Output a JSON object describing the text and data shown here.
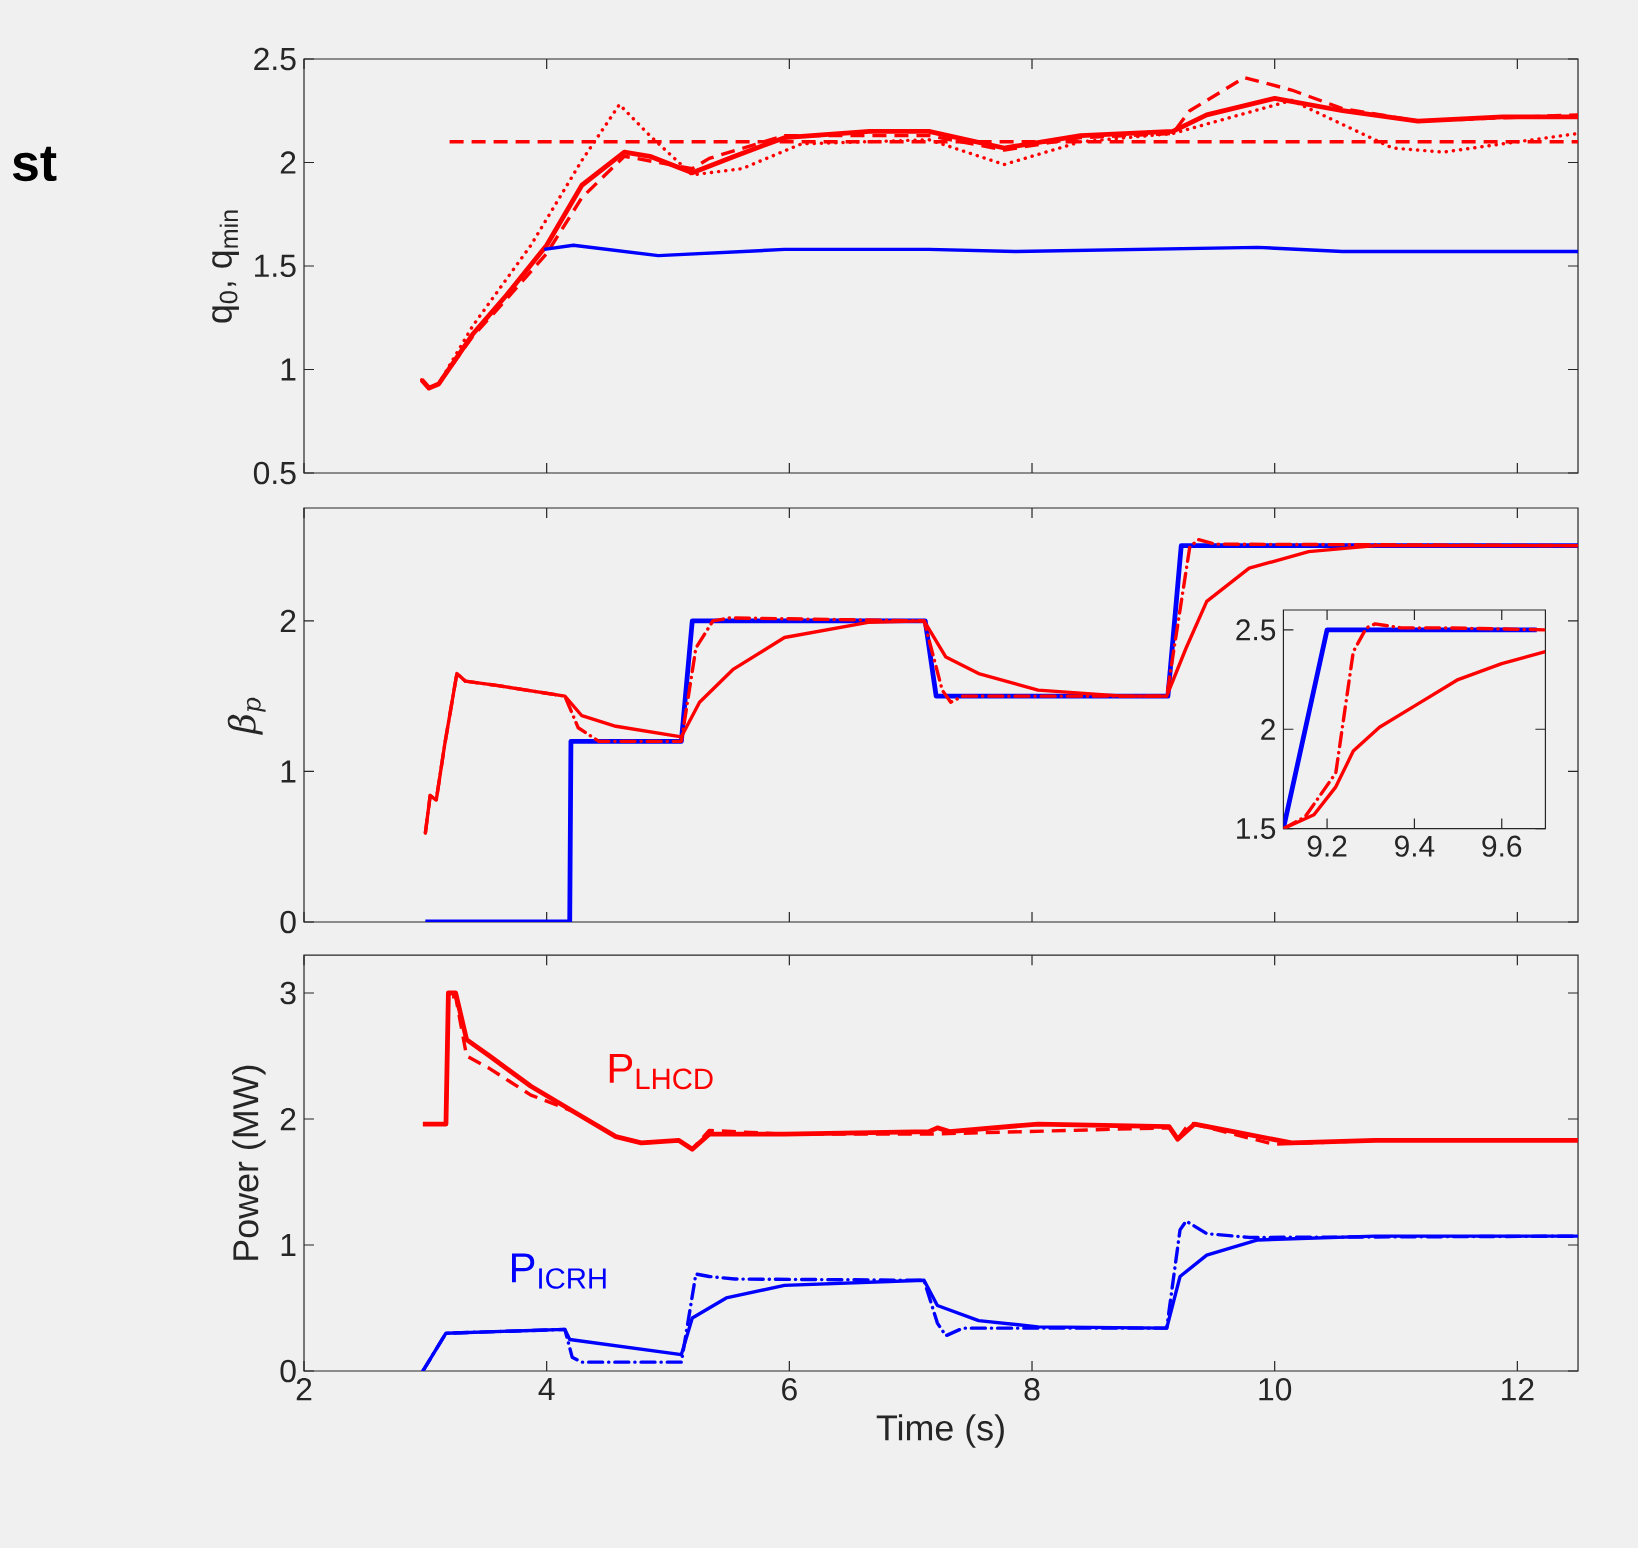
{
  "chart_data": [
    {
      "type": "line",
      "ylabel": "q$_{0}$, q$_{min}$",
      "annotations": [
        "st"
      ],
      "xlim": [
        2,
        12.5
      ],
      "ylim": [
        0.5,
        2.5
      ],
      "xticks": [
        2,
        4,
        6,
        8,
        10,
        12
      ],
      "yticks": [
        0.5,
        1,
        1.5,
        2,
        2.5
      ],
      "tick_labels": "y",
      "series": [
        {
          "color": "#ff0000",
          "line_style": "solid",
          "x": [
            2.97,
            3.03,
            3.11,
            3.39,
            3.67,
            4.0,
            4.29,
            4.64,
            4.85,
            5.2,
            5.55,
            5.96,
            6.66,
            7.15,
            7.77,
            8.4,
            9.16,
            9.44,
            10.0,
            10.56,
            11.18,
            11.88,
            12.5
          ],
          "values": [
            0.95,
            0.91,
            0.93,
            1.17,
            1.36,
            1.6,
            1.89,
            2.05,
            2.03,
            1.95,
            2.03,
            2.12,
            2.15,
            2.15,
            2.07,
            2.13,
            2.15,
            2.23,
            2.31,
            2.25,
            2.2,
            2.22,
            2.22
          ]
        },
        {
          "color": "#ff0000",
          "line_style": "dashed",
          "x": [
            2.97,
            3.03,
            3.11,
            3.39,
            3.67,
            4.0,
            4.29,
            4.64,
            5.2,
            5.34,
            5.96,
            7.15,
            7.77,
            8.4,
            9.16,
            9.3,
            9.75,
            10.14,
            10.56,
            11.18,
            12.5
          ],
          "values": [
            0.95,
            0.91,
            0.93,
            1.16,
            1.34,
            1.56,
            1.83,
            2.03,
            1.97,
            2.02,
            2.13,
            2.13,
            2.06,
            2.12,
            2.14,
            2.25,
            2.41,
            2.35,
            2.26,
            2.2,
            2.23
          ]
        },
        {
          "color": "#ff0000",
          "line_style": "dotted",
          "x": [
            2.97,
            3.03,
            3.11,
            3.39,
            3.87,
            4.29,
            4.6,
            4.85,
            5.2,
            5.61,
            6.1,
            7.15,
            7.77,
            8.4,
            9.16,
            10.14,
            10.97,
            11.39,
            11.88,
            12.5
          ],
          "values": [
            0.95,
            0.91,
            0.93,
            1.21,
            1.6,
            2.01,
            2.28,
            2.13,
            1.94,
            1.97,
            2.09,
            2.11,
            1.99,
            2.1,
            2.14,
            2.3,
            2.07,
            2.05,
            2.09,
            2.14
          ]
        },
        {
          "color": "#ff0000",
          "line_style": "dashed",
          "x": [
            3.2,
            12.5
          ],
          "values": [
            2.1,
            2.1
          ]
        },
        {
          "color": "#0000ff",
          "line_style": "solid",
          "x": [
            3.98,
            4.22,
            4.92,
            5.96,
            7.15,
            7.86,
            9.86,
            10.56,
            12.5
          ],
          "values": [
            1.58,
            1.6,
            1.55,
            1.58,
            1.58,
            1.57,
            1.59,
            1.57,
            1.57
          ]
        }
      ]
    },
    {
      "type": "line",
      "ylabel": "β$_{p}$",
      "xlim": [
        2,
        12.5
      ],
      "ylim": [
        0,
        2.75
      ],
      "xticks": [
        2,
        4,
        6,
        8,
        10,
        12
      ],
      "yticks": [
        0,
        1,
        2
      ],
      "tick_labels": "y",
      "series": [
        {
          "color": "#0000ff",
          "line_style": "solid",
          "x": [
            3.0,
            4.19,
            4.2,
            5.11,
            5.2,
            7.12,
            7.21,
            9.12,
            9.23,
            12.5
          ],
          "values": [
            0,
            0,
            1.2,
            1.2,
            2.0,
            2.0,
            1.5,
            1.5,
            2.5,
            2.5
          ]
        },
        {
          "color": "#ff0000",
          "line_style": "solid",
          "x": [
            3.0,
            3.04,
            3.09,
            3.16,
            3.26,
            3.33,
            3.6,
            4.15,
            4.29,
            4.57,
            5.11,
            5.26,
            5.54,
            5.96,
            6.65,
            7.11,
            7.29,
            7.56,
            8.05,
            8.75,
            9.11,
            9.27,
            9.44,
            9.79,
            10.28,
            10.83,
            12.5
          ],
          "values": [
            0.59,
            0.84,
            0.81,
            1.18,
            1.65,
            1.6,
            1.57,
            1.5,
            1.37,
            1.3,
            1.23,
            1.46,
            1.68,
            1.89,
            1.99,
            2.0,
            1.76,
            1.65,
            1.54,
            1.5,
            1.5,
            1.82,
            2.13,
            2.35,
            2.46,
            2.5,
            2.5
          ]
        },
        {
          "color": "#ff0000",
          "line_style": "dashdot",
          "x": [
            3.0,
            3.04,
            3.09,
            3.16,
            3.26,
            3.33,
            3.6,
            4.15,
            4.26,
            4.43,
            5.11,
            5.23,
            5.37,
            5.51,
            7.11,
            7.26,
            7.33,
            7.43,
            9.11,
            9.3,
            9.37,
            9.51,
            12.5
          ],
          "values": [
            0.59,
            0.84,
            0.81,
            1.18,
            1.65,
            1.6,
            1.57,
            1.5,
            1.29,
            1.2,
            1.2,
            1.82,
            2.0,
            2.02,
            2.0,
            1.54,
            1.46,
            1.5,
            1.5,
            2.49,
            2.54,
            2.51,
            2.5
          ]
        }
      ]
    },
    {
      "type": "line",
      "xlim": [
        9.1,
        9.7
      ],
      "ylim": [
        1.5,
        2.6
      ],
      "xticks": [
        9.2,
        9.4,
        9.6
      ],
      "yticks": [
        1.5,
        2,
        2.5
      ],
      "series": [
        {
          "color": "#0000ff",
          "line_style": "solid",
          "x": [
            9.1,
            9.2,
            9.68
          ],
          "values": [
            1.5,
            2.5,
            2.5
          ]
        },
        {
          "color": "#ff0000",
          "line_style": "dashdot",
          "x": [
            9.1,
            9.15,
            9.22,
            9.26,
            9.29,
            9.31,
            9.37,
            9.47,
            9.7
          ],
          "values": [
            1.5,
            1.56,
            1.78,
            2.39,
            2.51,
            2.53,
            2.51,
            2.51,
            2.5
          ]
        },
        {
          "color": "#ff0000",
          "line_style": "solid",
          "x": [
            9.1,
            9.17,
            9.22,
            9.26,
            9.32,
            9.41,
            9.5,
            9.6,
            9.7
          ],
          "values": [
            1.5,
            1.57,
            1.71,
            1.89,
            2.01,
            2.13,
            2.25,
            2.33,
            2.39
          ]
        }
      ]
    },
    {
      "type": "line",
      "xlabel": "Time (s)",
      "ylabel": "Power (MW)",
      "xlim": [
        2,
        12.5
      ],
      "ylim": [
        0,
        3.3
      ],
      "xticks": [
        2,
        4,
        6,
        8,
        10,
        12
      ],
      "yticks": [
        0,
        1,
        2,
        3
      ],
      "series": [
        {
          "name": "P$_{LHCD}$",
          "color": "#ff0000",
          "line_style": "solid",
          "x": [
            2.98,
            3.17,
            3.19,
            3.25,
            3.34,
            3.53,
            3.87,
            4.22,
            4.57,
            4.78,
            5.09,
            5.2,
            5.34,
            5.96,
            7.15,
            7.22,
            7.32,
            8.05,
            9.13,
            9.2,
            9.34,
            9.66,
            10.14,
            10.83,
            12.5
          ],
          "values": [
            1.96,
            1.96,
            3.0,
            3.0,
            2.63,
            2.5,
            2.26,
            2.06,
            1.86,
            1.81,
            1.83,
            1.76,
            1.88,
            1.88,
            1.9,
            1.93,
            1.9,
            1.96,
            1.94,
            1.84,
            1.96,
            1.9,
            1.81,
            1.83,
            1.83
          ]
        },
        {
          "color": "#ff0000",
          "line_style": "dashed",
          "x": [
            2.98,
            3.17,
            3.19,
            3.25,
            3.34,
            3.53,
            3.87,
            4.22,
            4.57,
            4.78,
            5.09,
            5.2,
            5.34,
            5.96,
            7.15,
            9.13,
            9.2,
            9.3,
            9.66,
            9.99,
            10.83,
            12.5
          ],
          "values": [
            1.96,
            1.96,
            2.97,
            2.97,
            2.5,
            2.4,
            2.19,
            2.06,
            1.86,
            1.81,
            1.83,
            1.76,
            1.91,
            1.88,
            1.88,
            1.93,
            1.84,
            1.97,
            1.88,
            1.8,
            1.83,
            1.83
          ]
        },
        {
          "name": "P$_{ICRH}$",
          "color": "#0000ff",
          "line_style": "solid",
          "x": [
            2.98,
            3.17,
            4.15,
            4.19,
            5.11,
            5.2,
            5.48,
            5.96,
            7.11,
            7.22,
            7.56,
            8.05,
            9.11,
            9.22,
            9.44,
            9.86,
            10.83,
            12.5
          ],
          "values": [
            0,
            0.3,
            0.33,
            0.25,
            0.13,
            0.42,
            0.58,
            0.68,
            0.72,
            0.52,
            0.4,
            0.35,
            0.34,
            0.75,
            0.92,
            1.04,
            1.07,
            1.07
          ]
        },
        {
          "color": "#0000ff",
          "line_style": "dashdot",
          "x": [
            2.98,
            3.17,
            4.15,
            4.21,
            4.29,
            5.11,
            5.23,
            5.34,
            5.55,
            7.11,
            7.22,
            7.29,
            7.43,
            9.11,
            9.22,
            9.27,
            9.44,
            9.79,
            12.5
          ],
          "values": [
            0,
            0.3,
            0.33,
            0.11,
            0.07,
            0.07,
            0.77,
            0.75,
            0.73,
            0.72,
            0.38,
            0.28,
            0.34,
            0.34,
            1.12,
            1.19,
            1.09,
            1.06,
            1.07
          ]
        }
      ]
    }
  ]
}
